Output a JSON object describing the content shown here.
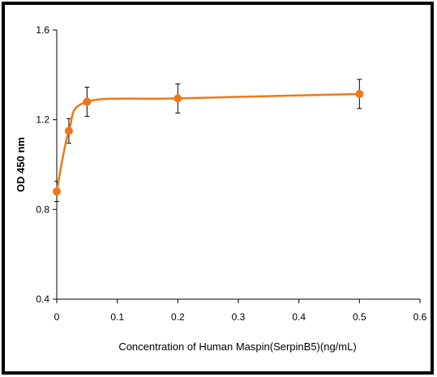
{
  "chart_data": {
    "type": "line",
    "title": "",
    "xlabel": "Concentration of Human Maspin(SerpinB5)(ng/mL)",
    "ylabel": "OD 450 nm",
    "xlim": [
      0,
      0.6
    ],
    "ylim": [
      0.4,
      1.6
    ],
    "x_ticks": [
      "0",
      "0.1",
      "0.2",
      "0.3",
      "0.4",
      "0.5",
      "0.6"
    ],
    "y_ticks": [
      "0.4",
      "0.8",
      "1.2",
      "1.6"
    ],
    "grid": false,
    "legend": "none",
    "series_color": "#f07818",
    "series": [
      {
        "x": [
          0,
          0.02,
          0.05,
          0.2,
          0.5
        ],
        "y": [
          0.88,
          1.15,
          1.28,
          1.295,
          1.315
        ],
        "error": [
          0.045,
          0.055,
          0.065,
          0.065,
          0.065
        ]
      }
    ]
  }
}
